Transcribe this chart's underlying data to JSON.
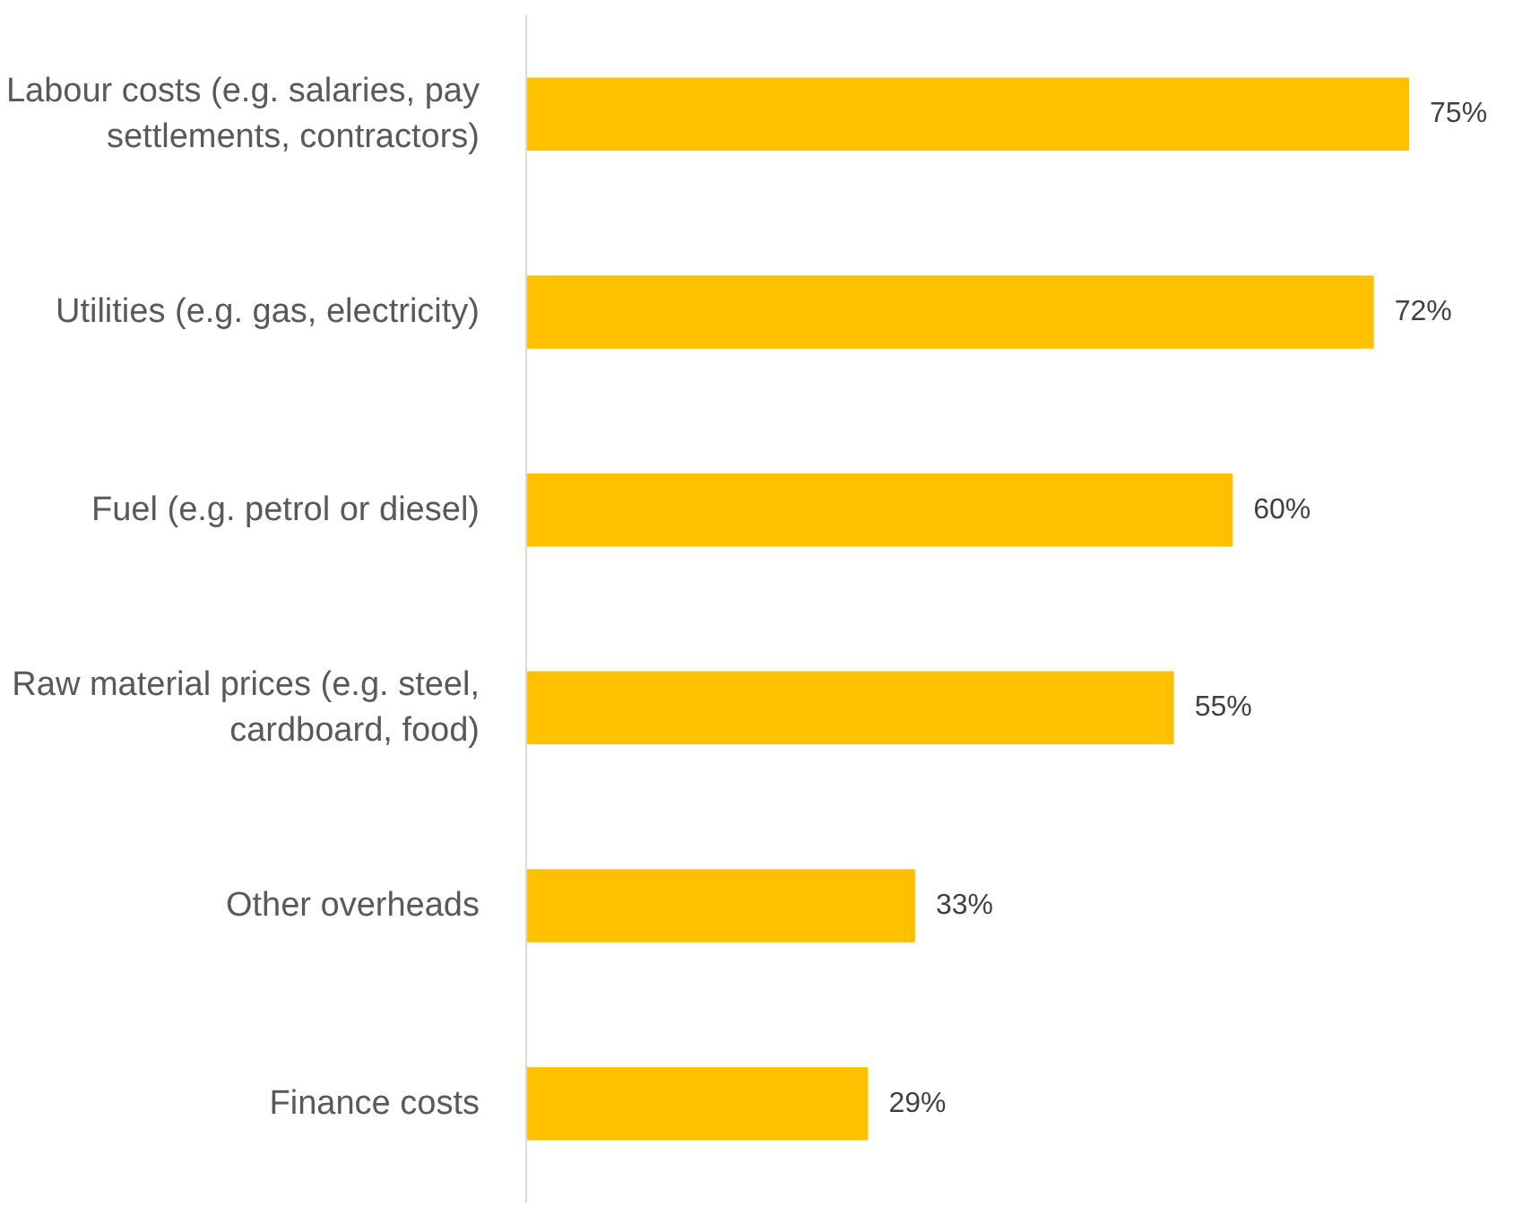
{
  "chart_data": {
    "type": "bar",
    "orientation": "horizontal",
    "categories": [
      "Labour costs (e.g. salaries, pay\nsettlements, contractors)",
      "Utilities (e.g. gas, electricity)",
      "Fuel (e.g. petrol or diesel)",
      "Raw material prices (e.g. steel,\ncardboard, food)",
      "Other overheads",
      "Finance costs"
    ],
    "values": [
      75,
      72,
      60,
      55,
      33,
      29
    ],
    "value_labels": [
      "75%",
      "72%",
      "60%",
      "55%",
      "33%",
      "29%"
    ],
    "color": "#ffc000"
  }
}
